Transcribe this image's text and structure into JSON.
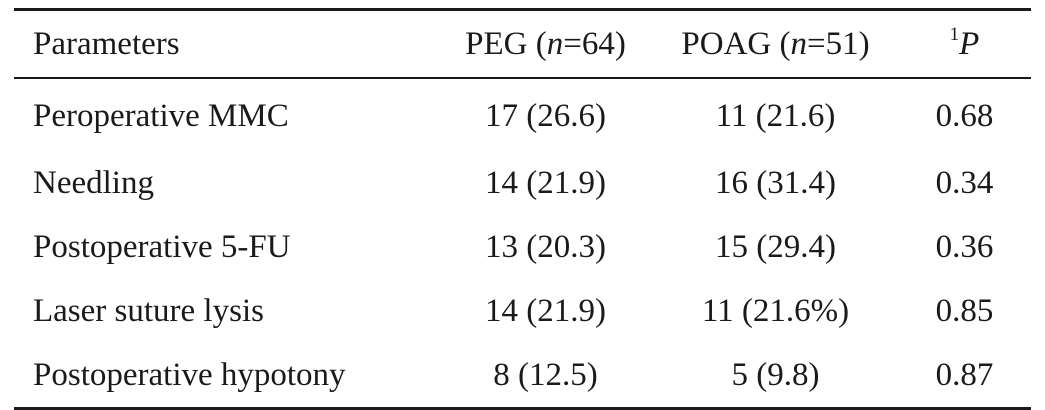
{
  "table": {
    "headers": {
      "parameters": "Parameters",
      "peg_label": "PEG (",
      "peg_n_symbol": "n",
      "peg_n_value": "=64)",
      "poag_label": "POAG (",
      "poag_n_symbol": "n",
      "poag_n_value": "=51)",
      "p_superscript": "1",
      "p_symbol": "P"
    },
    "rows": [
      {
        "parameter": "Peroperative MMC",
        "peg": "17 (26.6)",
        "poag": "11 (21.6)",
        "p": "0.68"
      },
      {
        "parameter": "Needling",
        "peg": "14 (21.9)",
        "poag": "16 (31.4)",
        "p": "0.34"
      },
      {
        "parameter": "Postoperative 5-FU",
        "peg": "13 (20.3)",
        "poag": "15 (29.4)",
        "p": "0.36"
      },
      {
        "parameter": "Laser suture lysis",
        "peg": "14 (21.9)",
        "poag": "11 (21.6%)",
        "p": "0.85"
      },
      {
        "parameter": "Postoperative hypotony",
        "peg": "8 (12.5)",
        "poag": "5 (9.8)",
        "p": "0.87"
      }
    ]
  }
}
